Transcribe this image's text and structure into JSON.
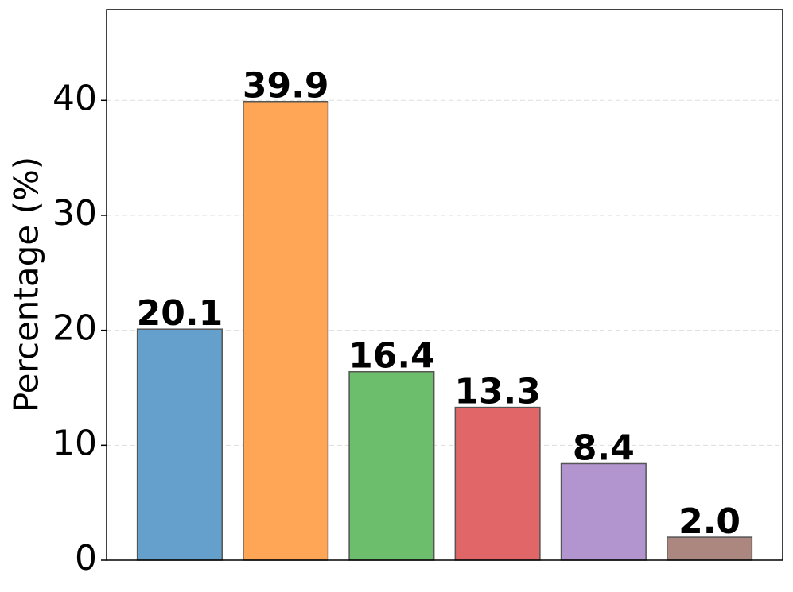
{
  "chart_data": {
    "type": "bar",
    "ylabel": "Percentage (%)",
    "categories": [
      null,
      null,
      null,
      null,
      null,
      null
    ],
    "values": [
      20.1,
      39.9,
      16.4,
      13.3,
      8.4,
      2.0
    ],
    "value_labels": [
      "20.1",
      "39.9",
      "16.4",
      "13.3",
      "8.4",
      "2.0"
    ],
    "colors": [
      "#64a0cb",
      "#ffa556",
      "#6cbd6c",
      "#e06668",
      "#b294cf",
      "#ab8780"
    ],
    "ylim": [
      0,
      47.9
    ],
    "yticks": [
      0,
      10,
      20,
      30,
      40
    ],
    "grid": true
  }
}
